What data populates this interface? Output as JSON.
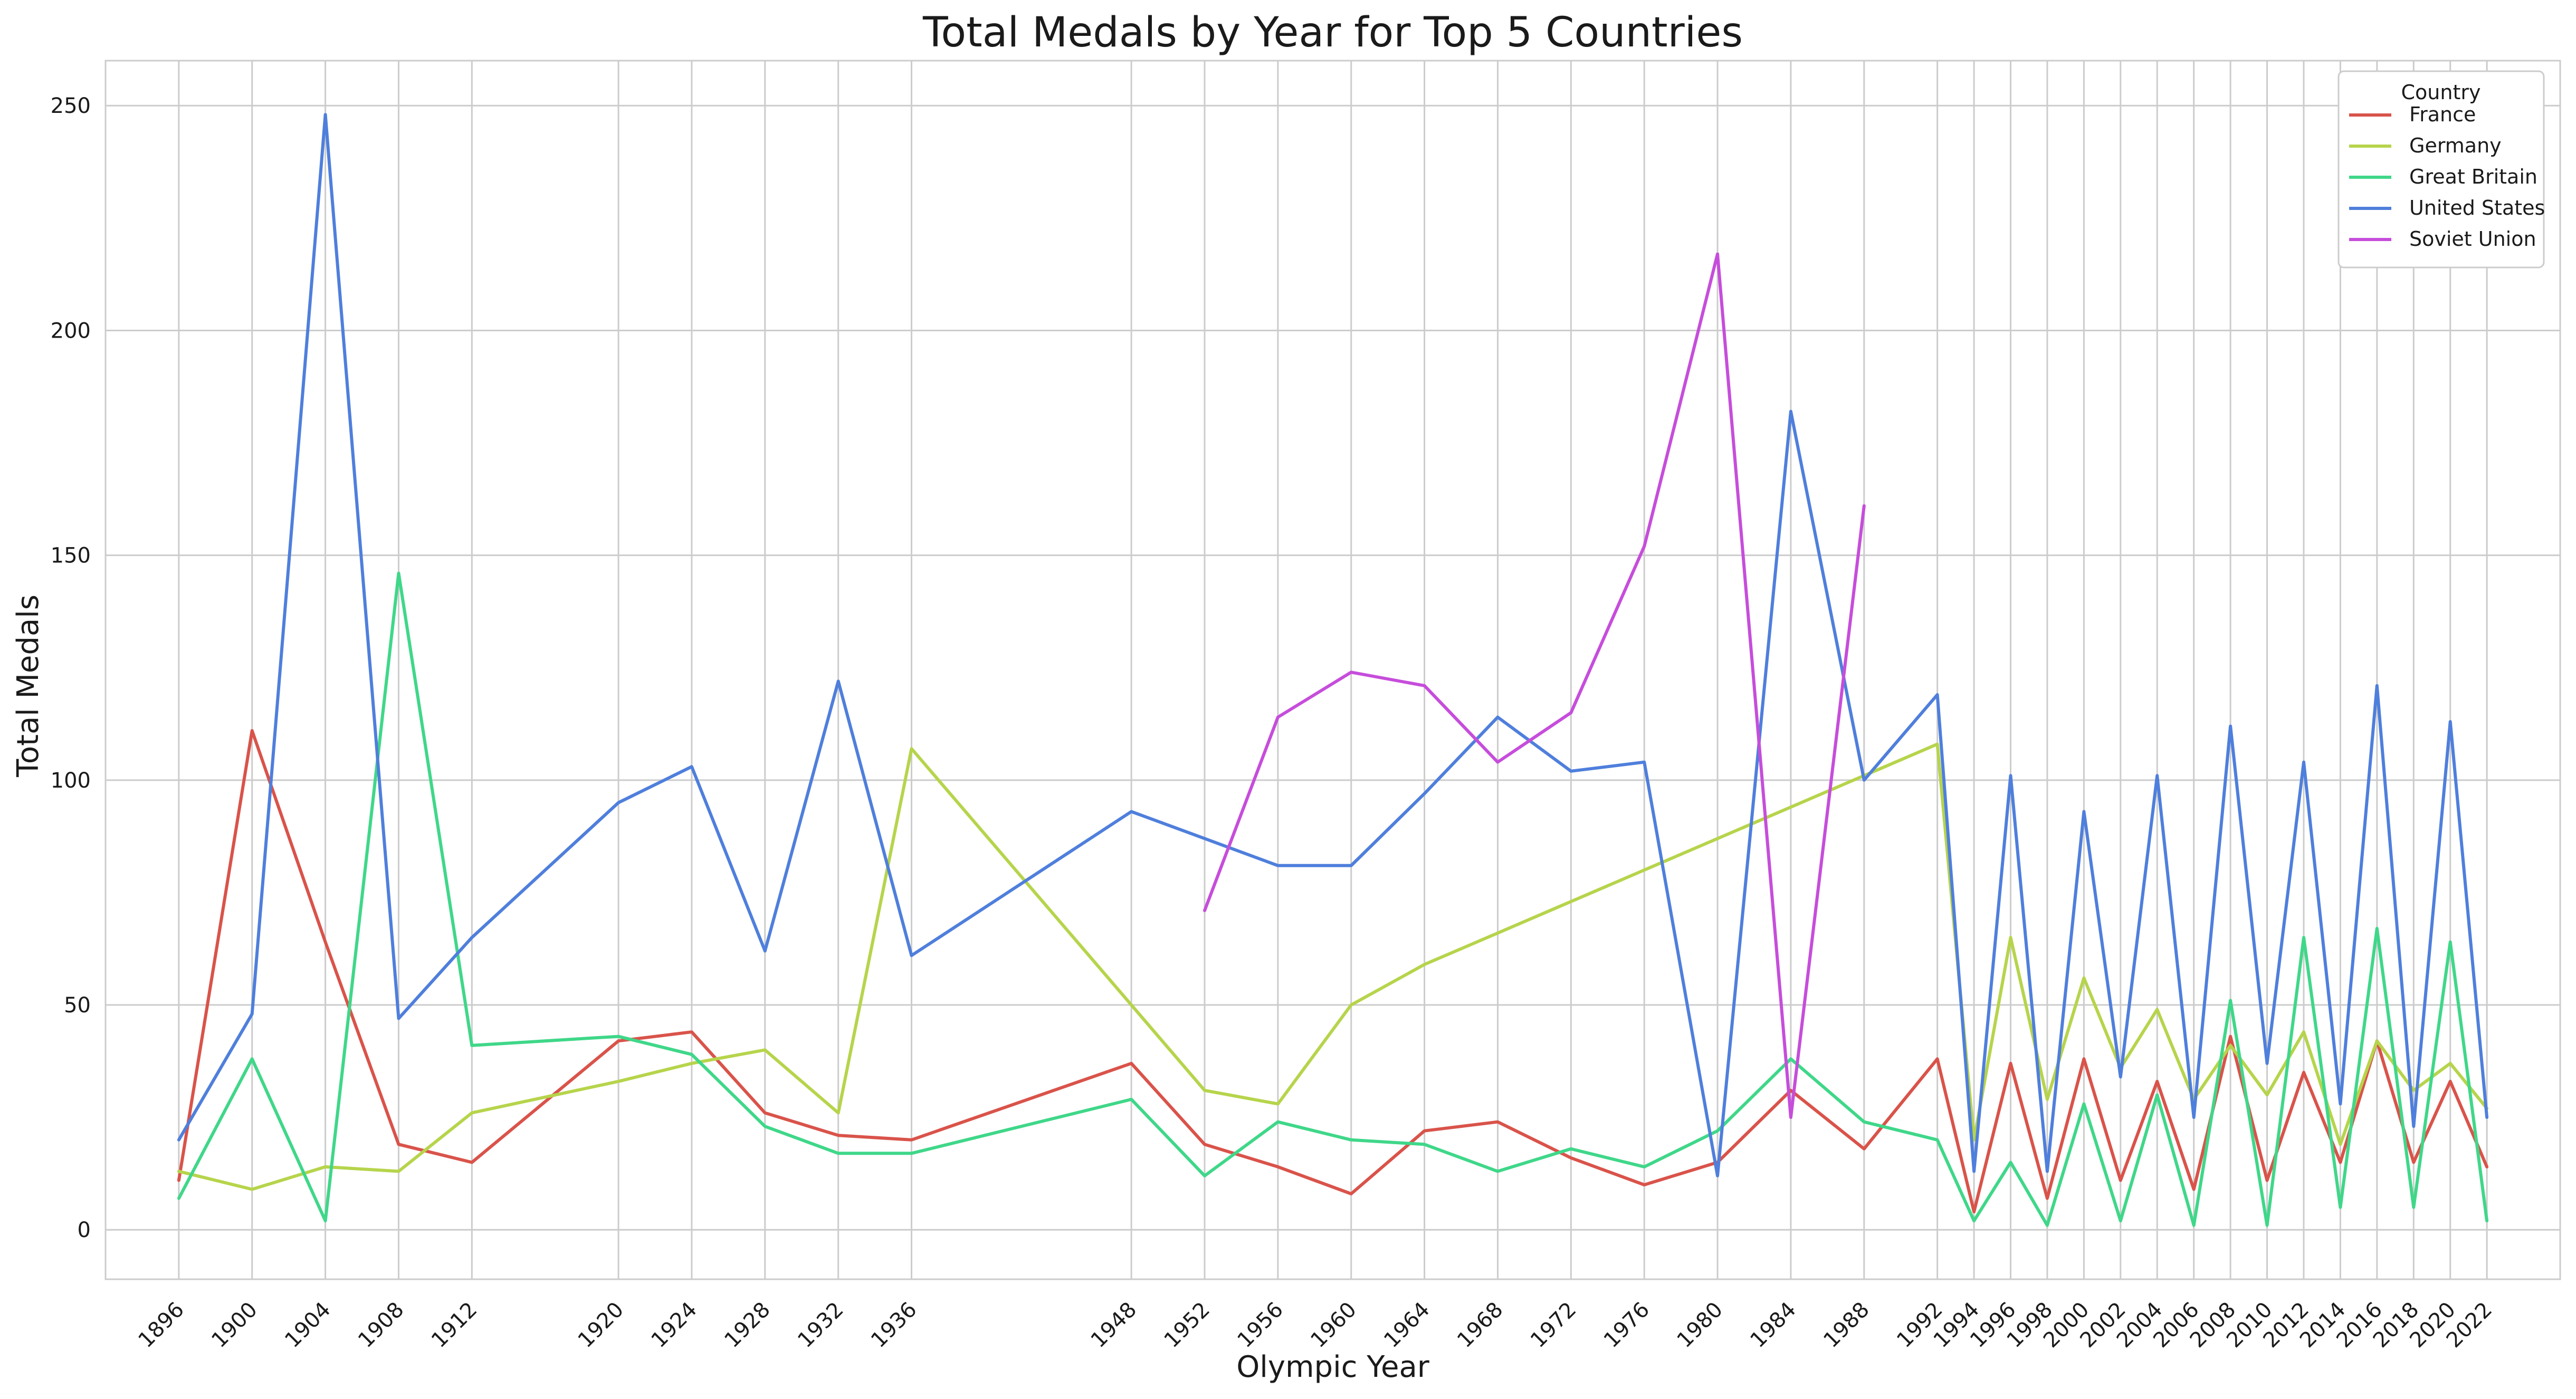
{
  "chart_data": {
    "type": "line",
    "title": "Total Medals by Year for Top 5 Countries",
    "xlabel": "Olympic Year",
    "ylabel": "Total Medals",
    "ylim": [
      -11,
      260
    ],
    "y_ticks": [
      0,
      50,
      100,
      150,
      200,
      250
    ],
    "grid": true,
    "legend": {
      "title": "Country",
      "placement": "top-right"
    },
    "x": [
      1896,
      1900,
      1904,
      1908,
      1912,
      1920,
      1924,
      1928,
      1932,
      1936,
      1948,
      1952,
      1956,
      1960,
      1964,
      1968,
      1972,
      1976,
      1980,
      1984,
      1988,
      1992,
      1994,
      1996,
      1998,
      2000,
      2002,
      2004,
      2006,
      2008,
      2010,
      2012,
      2014,
      2016,
      2018,
      2020,
      2022
    ],
    "series": [
      {
        "name": "France",
        "color": "#d9534a",
        "values": [
          11,
          111,
          64,
          19,
          15,
          42,
          44,
          26,
          21,
          20,
          37,
          19,
          14,
          8,
          22,
          24,
          16,
          10,
          15,
          31,
          18,
          38,
          4,
          37,
          7,
          38,
          11,
          33,
          9,
          43,
          11,
          35,
          15,
          42,
          15,
          33,
          14
        ]
      },
      {
        "name": "Germany",
        "color": "#b6d44b",
        "values": [
          13,
          9,
          14,
          13,
          26,
          33,
          37,
          40,
          26,
          107,
          50,
          31,
          28,
          50,
          59,
          66,
          73,
          80,
          87,
          94,
          101,
          108,
          20,
          65,
          29,
          56,
          36,
          49,
          29,
          41,
          30,
          44,
          19,
          42,
          31,
          37,
          27
        ]
      },
      {
        "name": "Great Britain",
        "color": "#3fd789",
        "values": [
          7,
          38,
          2,
          146,
          41,
          43,
          39,
          23,
          17,
          17,
          29,
          12,
          24,
          20,
          19,
          13,
          18,
          14,
          22,
          38,
          24,
          20,
          2,
          15,
          1,
          28,
          2,
          30,
          1,
          51,
          1,
          65,
          5,
          67,
          5,
          64,
          2
        ]
      },
      {
        "name": "United States",
        "color": "#4f7fdc",
        "values": [
          20,
          48,
          248,
          47,
          65,
          95,
          103,
          62,
          122,
          61,
          93,
          87,
          81,
          81,
          97,
          114,
          102,
          104,
          12,
          182,
          100,
          119,
          13,
          101,
          13,
          93,
          34,
          101,
          25,
          112,
          37,
          104,
          28,
          121,
          23,
          113,
          25
        ]
      },
      {
        "name": "Soviet Union",
        "color": "#c64ddb",
        "values": [
          null,
          null,
          null,
          null,
          null,
          null,
          null,
          null,
          null,
          null,
          null,
          71,
          114,
          124,
          121,
          104,
          115,
          152,
          217,
          25,
          161,
          null,
          null,
          null,
          null,
          null,
          null,
          null,
          null,
          null,
          null,
          null,
          null,
          null,
          null,
          null,
          null
        ]
      }
    ]
  }
}
